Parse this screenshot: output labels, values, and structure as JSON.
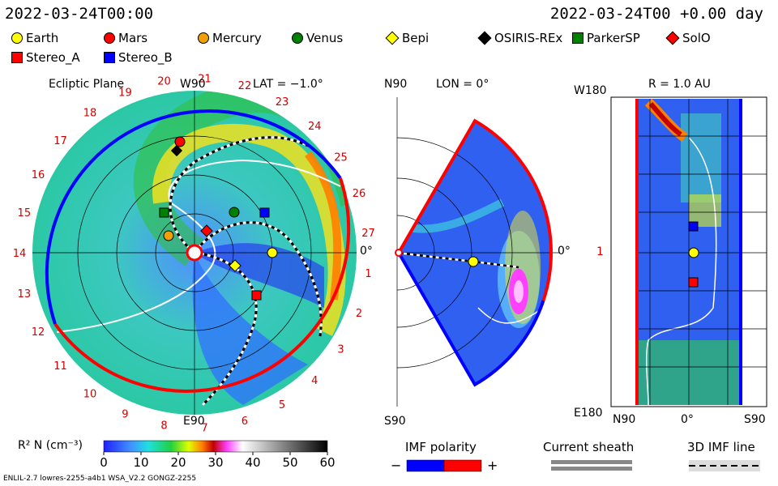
{
  "header": {
    "left_time": "2022-03-24T00:00",
    "right_time": "2022-03-24T00 +0.00 day"
  },
  "legend": [
    {
      "label": "Earth",
      "shape": "circle",
      "color": "#ffff00"
    },
    {
      "label": "Mars",
      "shape": "circle",
      "color": "#ff0000"
    },
    {
      "label": "Mercury",
      "shape": "circle",
      "color": "#f0a000"
    },
    {
      "label": "Venus",
      "shape": "circle",
      "color": "#008000"
    },
    {
      "label": "Bepi",
      "shape": "diamond",
      "color": "#ffff00"
    },
    {
      "label": "OSIRIS-REx",
      "shape": "diamond",
      "color": "#000000"
    },
    {
      "label": "ParkerSP",
      "shape": "square",
      "color": "#008000"
    },
    {
      "label": "SolO",
      "shape": "diamond",
      "color": "#ff0000"
    },
    {
      "label": "Stereo_A",
      "shape": "square",
      "color": "#ff0000"
    },
    {
      "label": "Stereo_B",
      "shape": "square",
      "color": "#0000ff"
    }
  ],
  "ecliptic": {
    "title": "Ecliptic Plane",
    "lat": "LAT = −1.0°",
    "top_label": "W90",
    "bottom_label": "E90",
    "right_label": "0°",
    "carrington_ticks": [
      "1",
      "2",
      "3",
      "4",
      "5",
      "6",
      "7",
      "8",
      "9",
      "10",
      "11",
      "12",
      "13",
      "14",
      "15",
      "16",
      "17",
      "18",
      "19",
      "20",
      "21",
      "22",
      "23",
      "24",
      "25",
      "26",
      "27"
    ]
  },
  "meridional": {
    "top_left": "N90",
    "lon": "LON = 0°",
    "bottom_left": "S90",
    "right_label": "0°"
  },
  "rplane": {
    "r": "R = 1.0 AU",
    "top_left": "W180",
    "mid_left": "1",
    "bottom_left": "E180",
    "x_left": "N90",
    "x_mid": "0°",
    "x_right": "S90"
  },
  "colorbar": {
    "label": "R² N (cm⁻³)",
    "ticks": [
      "0",
      "10",
      "20",
      "30",
      "40",
      "50",
      "60"
    ]
  },
  "imf": {
    "title": "IMF polarity",
    "minus": "−",
    "plus": "+",
    "neg_color": "#0000ff",
    "pos_color": "#ff0000"
  },
  "sheath": {
    "title": "Current sheath"
  },
  "line3d": {
    "title": "3D IMF line"
  },
  "footer": {
    "left": "ENLIL-2.7 lowres-2255-a4b1 WSA_V2.2 GONGZ-2255"
  }
}
